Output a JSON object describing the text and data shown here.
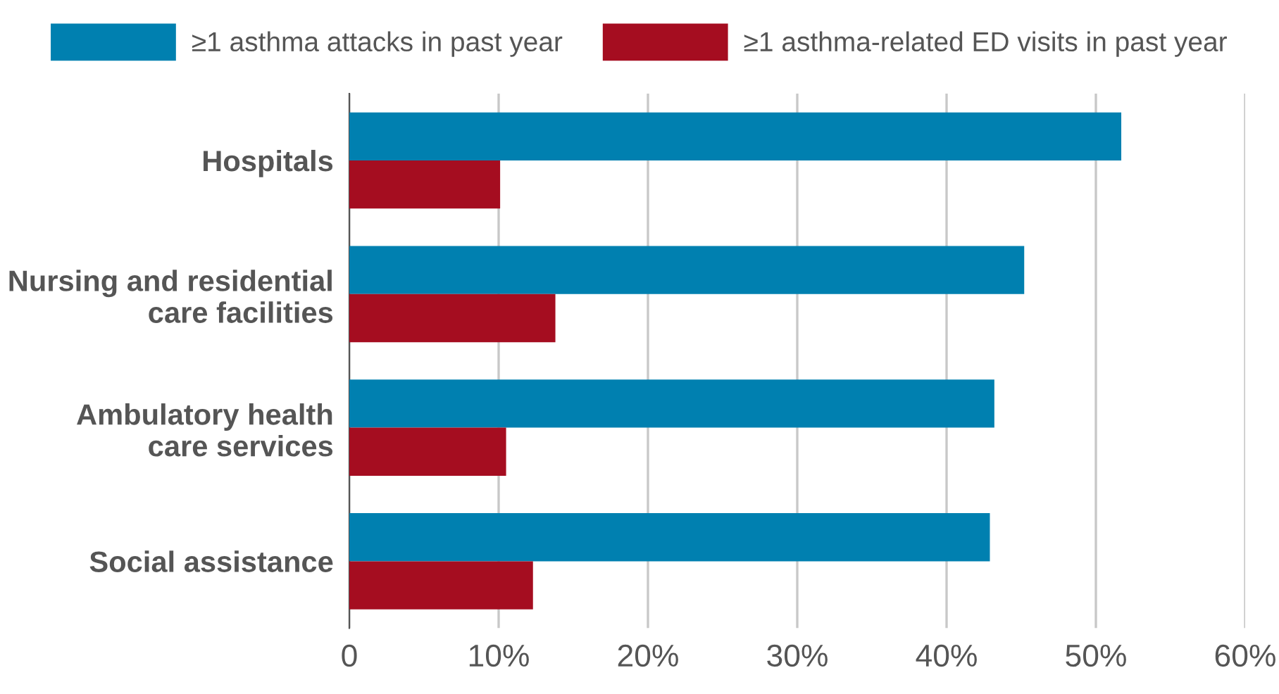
{
  "chart_data": {
    "type": "bar",
    "orientation": "horizontal",
    "categories": [
      "Hospitals",
      "Nursing and residential\ncare facilities",
      "Ambulatory health\ncare services",
      "Social assistance"
    ],
    "series": [
      {
        "name": "≥1 asthma attacks in past year",
        "color": "#0080b0",
        "values": [
          51.7,
          45.2,
          43.2,
          42.9
        ]
      },
      {
        "name": "≥1 asthma-related ED visits in past year",
        "color": "#a50d20",
        "values": [
          10.1,
          13.8,
          10.5,
          12.3
        ]
      }
    ],
    "xlim": [
      0,
      60
    ],
    "xticks": [
      {
        "value": 0,
        "label": "0"
      },
      {
        "value": 10,
        "label": "10%"
      },
      {
        "value": 20,
        "label": "20%"
      },
      {
        "value": 30,
        "label": "30%"
      },
      {
        "value": 40,
        "label": "40%"
      },
      {
        "value": 50,
        "label": "50%"
      },
      {
        "value": 60,
        "label": "60%"
      }
    ],
    "grid": "x",
    "legend": "top"
  }
}
